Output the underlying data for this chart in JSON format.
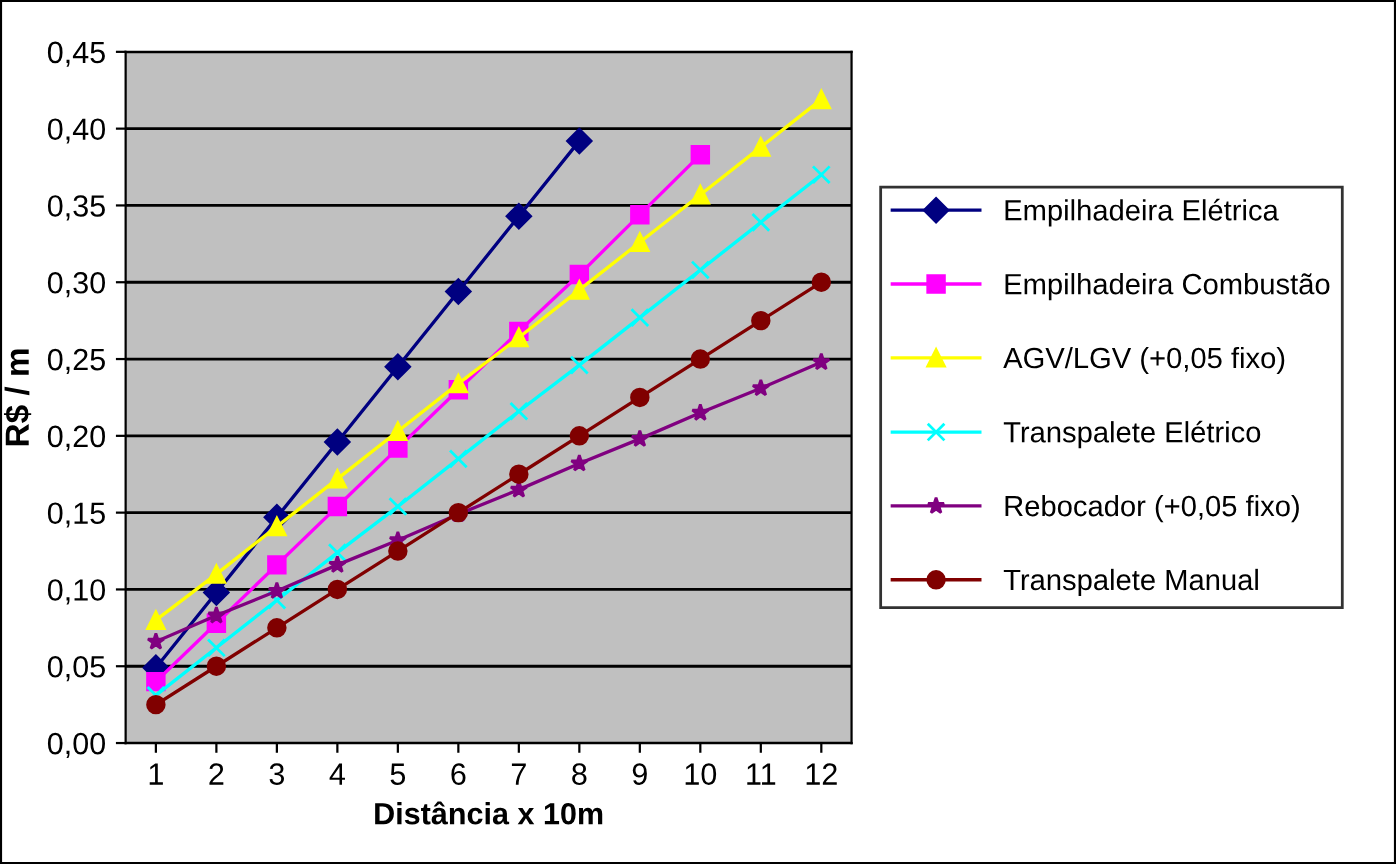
{
  "chart_data": {
    "type": "line",
    "xlabel": "Distância x 10m",
    "ylabel": "R$ / m",
    "categories": [
      "1",
      "2",
      "3",
      "4",
      "5",
      "6",
      "7",
      "8",
      "9",
      "10",
      "11",
      "12"
    ],
    "series": [
      {
        "name": "Empilhadeira Elétrica",
        "color": "#000080",
        "marker": "diamond",
        "values": [
          0.049,
          0.098,
          0.147,
          0.196,
          0.245,
          0.294,
          0.343,
          0.392,
          null,
          null,
          null,
          null
        ]
      },
      {
        "name": "Empilhadeira Combustão",
        "color": "#ff00ff",
        "marker": "square",
        "values": [
          0.04,
          0.078,
          0.116,
          0.154,
          0.192,
          0.23,
          0.268,
          0.305,
          0.344,
          0.383,
          null,
          null
        ]
      },
      {
        "name": "AGV/LGV (+0,05 fixo)",
        "color": "#ffff00",
        "marker": "triangle",
        "values": [
          0.08,
          0.11,
          0.141,
          0.172,
          0.203,
          0.234,
          0.264,
          0.295,
          0.326,
          0.357,
          0.388,
          0.419
        ]
      },
      {
        "name": "Transpalete Elétrico",
        "color": "#00ffff",
        "marker": "cross",
        "values": [
          0.031,
          0.062,
          0.093,
          0.124,
          0.154,
          0.185,
          0.216,
          0.246,
          0.277,
          0.308,
          0.339,
          0.37
        ]
      },
      {
        "name": "Rebocador (+0,05 fixo)",
        "color": "#800080",
        "marker": "star",
        "values": [
          0.066,
          0.083,
          0.099,
          0.116,
          0.132,
          0.149,
          0.165,
          0.182,
          0.198,
          0.215,
          0.231,
          0.248
        ]
      },
      {
        "name": "Transpalete Manual",
        "color": "#800000",
        "marker": "circle",
        "values": [
          0.025,
          0.05,
          0.075,
          0.1,
          0.125,
          0.15,
          0.175,
          0.2,
          0.225,
          0.25,
          0.275,
          0.3
        ]
      }
    ],
    "ylim": [
      0,
      0.45
    ],
    "yticks": [
      {
        "value": 0,
        "label": "0,00"
      },
      {
        "value": 0.05,
        "label": "0,05"
      },
      {
        "value": 0.1,
        "label": "0,10"
      },
      {
        "value": 0.15,
        "label": "0,15"
      },
      {
        "value": 0.2,
        "label": "0,20"
      },
      {
        "value": 0.25,
        "label": "0,25"
      },
      {
        "value": 0.3,
        "label": "0,30"
      },
      {
        "value": 0.35,
        "label": "0,35"
      },
      {
        "value": 0.4,
        "label": "0,40"
      },
      {
        "value": 0.45,
        "label": "0,45"
      }
    ],
    "grid": "y",
    "legend": "right",
    "line_style": "solid"
  }
}
